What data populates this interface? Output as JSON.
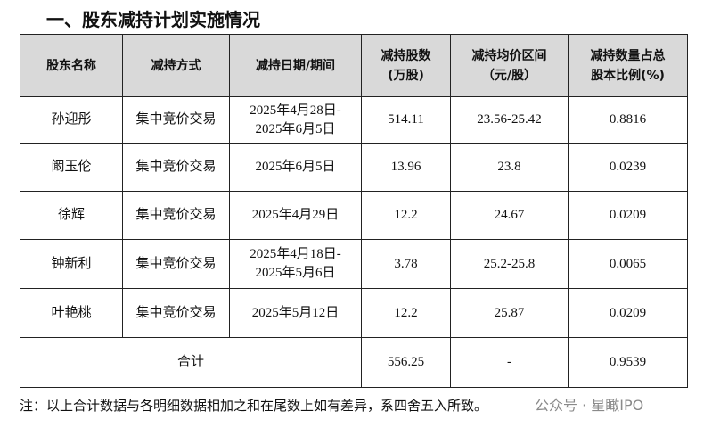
{
  "title": "一、股东减持计划实施情况",
  "table": {
    "header": [
      [
        "股东名称"
      ],
      [
        "减持方式"
      ],
      [
        "减持日期/期间"
      ],
      [
        "减持股数",
        "(万股)"
      ],
      [
        "减持均价区间",
        "（元/股）"
      ],
      [
        "减持数量占总",
        "股本比例(%)"
      ]
    ],
    "rows": [
      [
        [
          "孙迎彤"
        ],
        [
          "集中竞价交易"
        ],
        [
          "2025年4月28日-",
          "2025年6月5日"
        ],
        [
          "514.11"
        ],
        [
          "23.56-25.42"
        ],
        [
          "0.8816"
        ]
      ],
      [
        [
          "阚玉伦"
        ],
        [
          "集中竞价交易"
        ],
        [
          "2025年6月5日"
        ],
        [
          "13.96"
        ],
        [
          "23.8"
        ],
        [
          "0.0239"
        ]
      ],
      [
        [
          "徐辉"
        ],
        [
          "集中竞价交易"
        ],
        [
          "2025年4月29日"
        ],
        [
          "12.2"
        ],
        [
          "24.67"
        ],
        [
          "0.0209"
        ]
      ],
      [
        [
          "钟新利"
        ],
        [
          "集中竞价交易"
        ],
        [
          "2025年4月18日-",
          "2025年5月6日"
        ],
        [
          "3.78"
        ],
        [
          "25.2-25.8"
        ],
        [
          "0.0065"
        ]
      ],
      [
        [
          "叶艳桃"
        ],
        [
          "集中竞价交易"
        ],
        [
          "2025年5月12日"
        ],
        [
          "12.2"
        ],
        [
          "25.87"
        ],
        [
          "0.0209"
        ]
      ]
    ],
    "total": {
      "label": "合计",
      "values": [
        "556.25",
        "-",
        "0.9539"
      ]
    }
  },
  "note": "注：以上合计数据与各明细数据相加之和在尾数上如有差异，系四舍五入所致。",
  "watermark": "公众号 · 星瞰IPO"
}
